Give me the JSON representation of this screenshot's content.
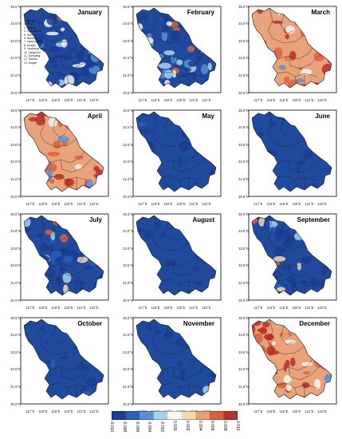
{
  "lat_labels": [
    "35.5°N",
    "34.5°N",
    "33.5°N",
    "32.5°N",
    "31.5°N",
    "30.5°N"
  ],
  "lon_labels": [
    "117°E",
    "118°E",
    "119°E",
    "120°E",
    "121°E",
    "122°E"
  ],
  "legend_items": [
    "1. Nanjing",
    "2. Wuxi",
    "3. Xuzhou",
    "4. Changzhou",
    "5. Suzhou",
    "6. Nantong",
    "7. Lianyungang",
    "8. Huaian",
    "9. Yancheng",
    "10. Yangzhou",
    "11. Zhenjiang",
    "12. Taizhou",
    "13. Suqian"
  ],
  "colorbar": {
    "ticks": [
      "-0.010",
      "-0.008",
      "-0.006",
      "-0.004",
      "-0.002",
      "0.000",
      "0.002",
      "0.004",
      "0.006",
      "0.008",
      "0.010"
    ],
    "colors": [
      "#1b3d93",
      "#2c5fb8",
      "#5a8fd2",
      "#a9d1ea",
      "#f5f7f2",
      "#f3d9b0",
      "#e9a173",
      "#d9623e",
      "#b8312a"
    ]
  },
  "panels": [
    {
      "month": "January",
      "style": "mixed"
    },
    {
      "month": "February",
      "style": "mixed"
    },
    {
      "month": "March",
      "style": "warm"
    },
    {
      "month": "April",
      "style": "warm"
    },
    {
      "month": "May",
      "style": "cool"
    },
    {
      "month": "June",
      "style": "cool"
    },
    {
      "month": "July",
      "style": "coolmix"
    },
    {
      "month": "August",
      "style": "cool"
    },
    {
      "month": "September",
      "style": "coolmix"
    },
    {
      "month": "October",
      "style": "cool"
    },
    {
      "month": "November",
      "style": "cool"
    },
    {
      "month": "December",
      "style": "warm"
    }
  ]
}
